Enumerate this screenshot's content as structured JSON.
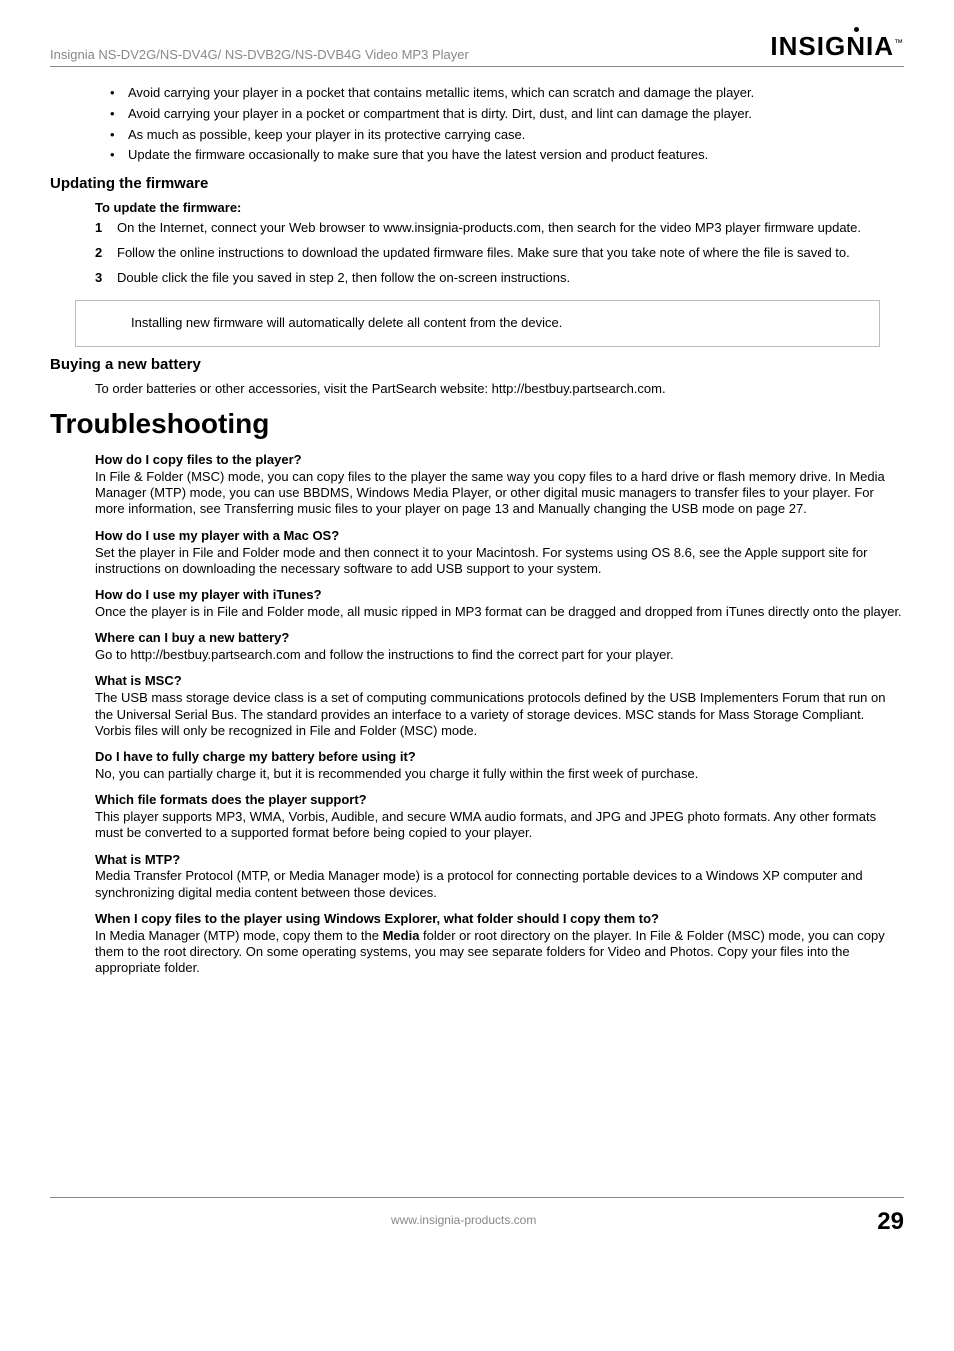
{
  "header": {
    "product_line": "Insignia NS-DV2G/NS-DV4G/ NS-DVB2G/NS-DVB4G Video MP3 Player",
    "brand": "INSIGNIA",
    "tm": "™"
  },
  "intro_bullets": [
    "Avoid carrying your player in a pocket that contains metallic items, which can scratch and damage the player.",
    "Avoid carrying your player in a pocket or compartment that is dirty. Dirt, dust, and lint can damage the player.",
    "As much as possible, keep your player in its protective carrying case.",
    "Update the firmware occasionally to make sure that you have the latest version and product features."
  ],
  "firmware": {
    "heading": "Updating the firmware",
    "subheading": "To update the firmware:",
    "steps": [
      "On the Internet, connect your Web browser to www.insignia-products.com, then search for the video MP3 player firmware update.",
      "Follow the online instructions to download the updated firmware files. Make sure that you take note of where the file is saved to.",
      "Double click the file you saved in step 2, then follow the on-screen instructions."
    ],
    "note": "Installing new firmware will automatically delete all content from the device."
  },
  "battery": {
    "heading": "Buying a new battery",
    "body": "To order batteries or other accessories, visit the PartSearch website: http://bestbuy.partsearch.com."
  },
  "troubleshooting": {
    "heading": "Troubleshooting",
    "items": [
      {
        "q": "How do I copy files to the player?",
        "a": "In File & Folder (MSC) mode, you can copy files to the player the same way you copy files to a hard drive or flash memory drive. In Media Manager (MTP) mode, you can use BBDMS, Windows Media Player, or other digital music managers to transfer files to your player. For more information, see Transferring music files to your player on page 13 and Manually changing the USB mode on page 27."
      },
      {
        "q": "How do I use my player with a Mac OS?",
        "a": "Set the player in File and Folder mode and then connect it to your Macintosh. For systems using OS 8.6, see the Apple support site for instructions on downloading the necessary software to add USB support to your system."
      },
      {
        "q": "How do I use my player with iTunes?",
        "a": "Once the player is in File and Folder mode, all music ripped in MP3 format can be dragged and dropped from iTunes directly onto the player."
      },
      {
        "q": "Where can I buy a new battery?",
        "a": "Go to http://bestbuy.partsearch.com and follow the instructions to find the correct part for your player."
      },
      {
        "q": "What is MSC?",
        "a": "The USB mass storage device class is a set of computing communications protocols defined by the USB Implementers Forum that run on the Universal Serial Bus. The standard provides an interface to a variety of storage devices. MSC stands for Mass Storage Compliant. Vorbis files will only be recognized in File and Folder (MSC) mode."
      },
      {
        "q": "Do I have to fully charge my battery before using it?",
        "a": "No, you can partially charge it, but it is recommended you charge it fully within the first week of purchase."
      },
      {
        "q": "Which file formats does the player support?",
        "a": "This player supports MP3, WMA, Vorbis, Audible, and secure WMA audio formats, and JPG and JPEG photo formats. Any other formats must be converted to a supported format before being copied to your player."
      },
      {
        "q": "What is MTP?",
        "a": "Media Transfer Protocol (MTP, or Media Manager mode) is a protocol for connecting portable devices to a Windows XP computer and synchronizing digital media content between those devices."
      }
    ],
    "last": {
      "q": "When I copy files to the player using Windows Explorer, what folder should I copy them to?",
      "a_pre": "In Media Manager (MTP) mode, copy them to the ",
      "a_bold": "Media",
      "a_post": " folder or root directory on the player. In File & Folder (MSC) mode, you can copy them to the root directory. On some operating systems, you may see separate folders for Video and Photos. Copy your files into the appropriate folder."
    }
  },
  "footer": {
    "url": "www.insignia-products.com",
    "page": "29"
  }
}
